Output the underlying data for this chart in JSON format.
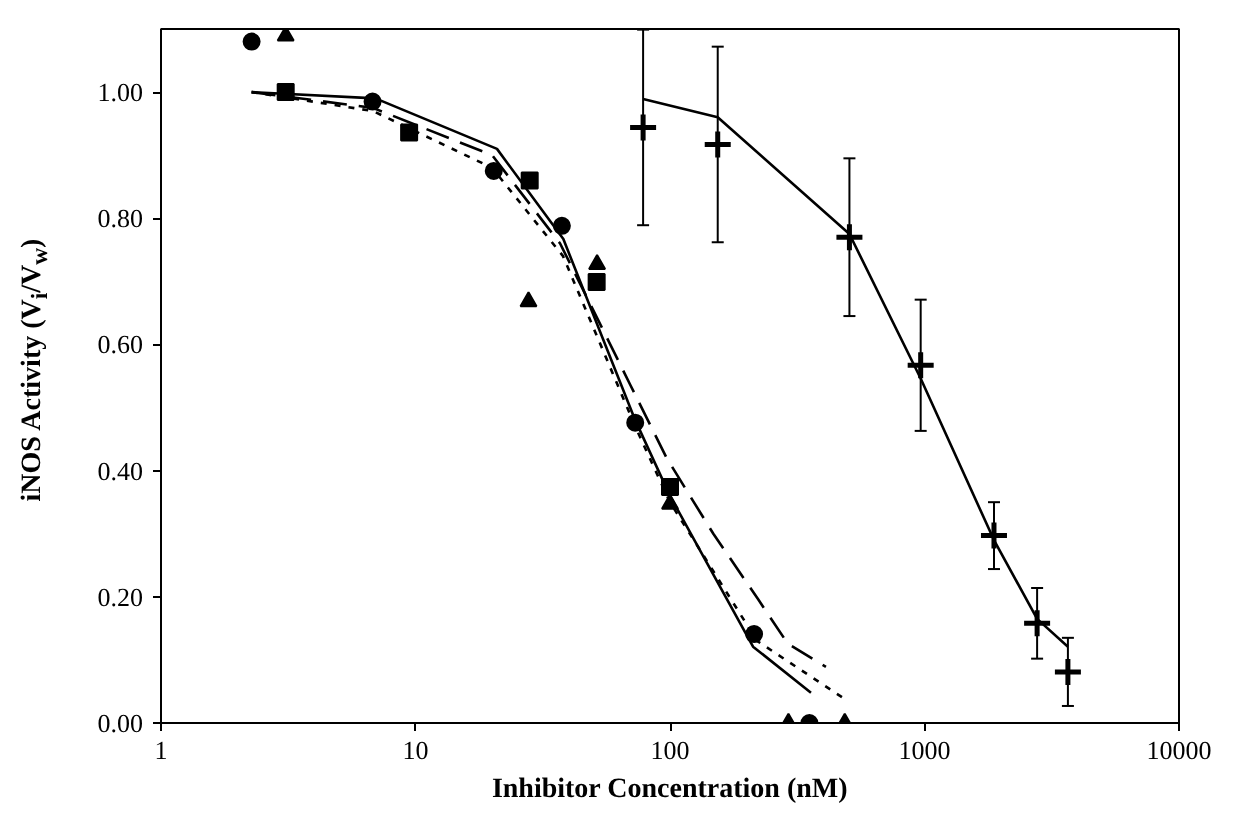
{
  "chart_data": {
    "type": "scatter",
    "xlabel": "Inhibitor Concentration (nM)",
    "ylabel": "iNOS Activity (V$_{i}$/V$_{w}$)",
    "log": "x",
    "xlim": [
      1,
      10000
    ],
    "ylim": [
      0,
      1.1
    ],
    "xticks": [
      1,
      10,
      100,
      1000,
      10000
    ],
    "yticks": [
      {
        "value": 0,
        "label": "0.00"
      },
      {
        "value": 0.2,
        "label": "0.20"
      },
      {
        "value": 0.4,
        "label": "0.40"
      },
      {
        "value": 0.6,
        "label": "0.60"
      },
      {
        "value": 0.8,
        "label": "0.80"
      },
      {
        "value": 1.0,
        "label": "1.00"
      }
    ],
    "grid": false,
    "series": [
      {
        "marker": "circle",
        "color": "#000000",
        "x": [
          2.27,
          6.78,
          20.3,
          37.6,
          73,
          214,
          353
        ],
        "values": [
          1.08,
          0.985,
          0.875,
          0.788,
          0.476,
          0.141,
          0
        ]
      },
      {
        "marker": "square",
        "color": "#000000",
        "x": [
          3.09,
          9.44,
          28.1,
          51.5,
          100
        ],
        "values": [
          1.0,
          0.936,
          0.86,
          0.699,
          0.374
        ]
      },
      {
        "marker": "triangle",
        "color": "#000000",
        "x": [
          3.09,
          27.8,
          51.7,
          100,
          292,
          486
        ],
        "values": [
          1.089,
          0.668,
          0.727,
          0.347,
          0,
          0
        ]
      },
      {
        "type": "line",
        "line_style": "solid",
        "color": "#000000",
        "x": [
          2.27,
          6.96,
          20.9,
          38.1,
          73,
          100,
          212,
          358
        ],
        "values": [
          1.0,
          0.99,
          0.91,
          0.767,
          0.48,
          0.36,
          0.121,
          0.048
        ]
      },
      {
        "type": "line",
        "line_style": "dashed",
        "color": "#000000",
        "x": [
          2.27,
          6.8,
          20,
          37,
          70,
          97,
          148,
          222,
          290,
          410
        ],
        "values": [
          1.0,
          0.975,
          0.9,
          0.76,
          0.535,
          0.42,
          0.3,
          0.196,
          0.126,
          0.089
        ]
      },
      {
        "type": "line",
        "line_style": "dotted",
        "color": "#000000",
        "x": [
          2.27,
          6.8,
          20,
          38,
          73,
          100,
          220,
          486
        ],
        "values": [
          1.0,
          0.97,
          0.88,
          0.74,
          0.47,
          0.35,
          0.13,
          0.038
        ]
      },
      {
        "type": "scatter",
        "marker": "cross",
        "color": "#000000",
        "x": [
          78.4,
          154,
          507,
          966,
          1875,
          2770,
          3660
        ],
        "values": [
          0.944,
          0.917,
          0.77,
          0.567,
          0.297,
          0.158,
          0.081
        ],
        "errors": [
          0.155,
          0.155,
          0.125,
          0.104,
          0.053,
          0.056,
          0.054
        ]
      },
      {
        "type": "line",
        "line_style": "solid",
        "color": "#000000",
        "x": [
          78.4,
          154,
          507,
          966,
          1875,
          2770,
          3660
        ],
        "values": [
          0.989,
          0.96,
          0.775,
          0.546,
          0.29,
          0.165,
          0.121
        ]
      }
    ]
  }
}
